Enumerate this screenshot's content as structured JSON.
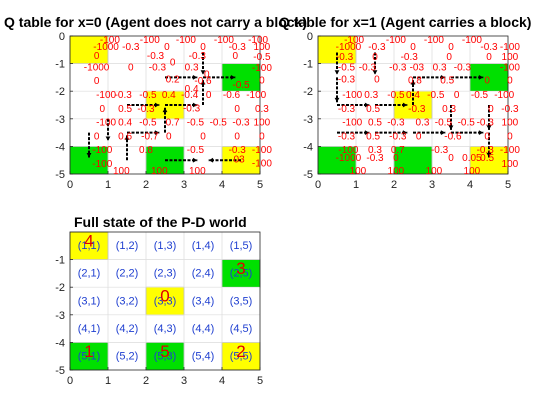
{
  "colors": {
    "pickup": "#ffff00",
    "dropoff": "#00e000",
    "qvalue": "#ff0000",
    "coord_label": "#1f3fd0",
    "grid": "#dcdcdc",
    "axis": "#262626",
    "arrow": "#000000"
  },
  "chart_data": [
    {
      "type": "heatmap",
      "title": "Q table for x=0 (Agent does not carry a block)",
      "xlim": [
        0,
        5
      ],
      "ylim": [
        -5,
        0
      ],
      "xticks": [
        "0",
        "1",
        "2",
        "3",
        "4",
        "5"
      ],
      "yticks": [
        "0",
        "-1",
        "-2",
        "-3",
        "-4",
        "-5"
      ],
      "grid": true,
      "cells": [
        {
          "row": 1,
          "col": 1,
          "color": "pickup"
        },
        {
          "row": 3,
          "col": 3,
          "color": "pickup"
        },
        {
          "row": 5,
          "col": 5,
          "color": "pickup"
        },
        {
          "row": 2,
          "col": 5,
          "color": "dropoff"
        },
        {
          "row": 5,
          "col": 1,
          "color": "dropoff"
        },
        {
          "row": 5,
          "col": 3,
          "color": "dropoff"
        }
      ],
      "q_labels": [
        {
          "x": 1.05,
          "y": -0.12,
          "text": "-100"
        },
        {
          "x": 0.95,
          "y": -0.38,
          "text": "-1000"
        },
        {
          "x": 1.6,
          "y": -0.38,
          "text": "-0.3"
        },
        {
          "x": 2.1,
          "y": -0.12,
          "text": "-100"
        },
        {
          "x": 2.55,
          "y": -0.38,
          "text": "0"
        },
        {
          "x": 3.05,
          "y": -0.12,
          "text": "-100"
        },
        {
          "x": 3.5,
          "y": -0.38,
          "text": "0"
        },
        {
          "x": 4.05,
          "y": -0.12,
          "text": "-100"
        },
        {
          "x": 4.4,
          "y": -0.38,
          "text": "-0.3"
        },
        {
          "x": 4.95,
          "y": -0.12,
          "text": "-100"
        },
        {
          "x": 5.05,
          "y": -0.38,
          "text": "100"
        },
        {
          "x": 0.7,
          "y": -0.7,
          "text": "0"
        },
        {
          "x": 2.25,
          "y": -0.7,
          "text": "-0.3"
        },
        {
          "x": 2.7,
          "y": -0.95,
          "text": "0"
        },
        {
          "x": 3.35,
          "y": -0.7,
          "text": "-0.3"
        },
        {
          "x": 4.35,
          "y": -0.7,
          "text": "0"
        },
        {
          "x": 5.05,
          "y": -0.75,
          "text": "-0.5"
        },
        {
          "x": 0.7,
          "y": -1.12,
          "text": "-1000"
        },
        {
          "x": 1.6,
          "y": -1.12,
          "text": "0"
        },
        {
          "x": 2.3,
          "y": -1.12,
          "text": "-0.3"
        },
        {
          "x": 3.2,
          "y": -1.12,
          "text": "0.3"
        },
        {
          "x": 3.6,
          "y": -1.38,
          "text": "0"
        },
        {
          "x": 5.05,
          "y": -1.15,
          "text": "-100"
        },
        {
          "x": 0.7,
          "y": -1.62,
          "text": "0"
        },
        {
          "x": 2.7,
          "y": -1.55,
          "text": "0.2"
        },
        {
          "x": 3.2,
          "y": -1.9,
          "text": "0.4"
        },
        {
          "x": 3.5,
          "y": -1.62,
          "text": "-0.6"
        },
        {
          "x": 4.5,
          "y": -1.75,
          "text": "-0.5"
        },
        {
          "x": 5.05,
          "y": -1.6,
          "text": "0"
        },
        {
          "x": 0.95,
          "y": -2.12,
          "text": "-100"
        },
        {
          "x": 1.4,
          "y": -2.12,
          "text": "-0.3"
        },
        {
          "x": 2.05,
          "y": -2.12,
          "text": "-0.5"
        },
        {
          "x": 2.6,
          "y": -2.12,
          "text": "0.4"
        },
        {
          "x": 3.15,
          "y": -2.12,
          "text": "-0.4"
        },
        {
          "x": 3.65,
          "y": -2.12,
          "text": "0"
        },
        {
          "x": 4.25,
          "y": -2.12,
          "text": "-0.6"
        },
        {
          "x": 4.9,
          "y": -2.12,
          "text": "-100"
        },
        {
          "x": 0.85,
          "y": -2.62,
          "text": "0"
        },
        {
          "x": 1.45,
          "y": -2.62,
          "text": "0.5"
        },
        {
          "x": 2.0,
          "y": -2.62,
          "text": "-0.3"
        },
        {
          "x": 3.2,
          "y": -2.6,
          "text": "-0.3"
        },
        {
          "x": 4.4,
          "y": -2.62,
          "text": "0"
        },
        {
          "x": 5.05,
          "y": -2.62,
          "text": "0.3"
        },
        {
          "x": 0.95,
          "y": -3.12,
          "text": "-100"
        },
        {
          "x": 1.45,
          "y": -3.12,
          "text": "0.4"
        },
        {
          "x": 2.05,
          "y": -3.12,
          "text": "-0.5"
        },
        {
          "x": 2.7,
          "y": -3.12,
          "text": "0.7"
        },
        {
          "x": 3.3,
          "y": -3.12,
          "text": "-0.5"
        },
        {
          "x": 3.9,
          "y": -3.12,
          "text": "-0.5"
        },
        {
          "x": 4.5,
          "y": -3.12,
          "text": "-0.3"
        },
        {
          "x": 5.05,
          "y": -3.12,
          "text": "100"
        },
        {
          "x": 0.7,
          "y": -3.62,
          "text": "0"
        },
        {
          "x": 1.45,
          "y": -3.62,
          "text": "0.6"
        },
        {
          "x": 2.1,
          "y": -3.62,
          "text": "-0.7"
        },
        {
          "x": 2.6,
          "y": -3.62,
          "text": "0"
        },
        {
          "x": 3.5,
          "y": -3.62,
          "text": "0"
        },
        {
          "x": 4.4,
          "y": -3.62,
          "text": "0"
        },
        {
          "x": 5.05,
          "y": -3.62,
          "text": "0"
        },
        {
          "x": 0.85,
          "y": -4.12,
          "text": "-100"
        },
        {
          "x": 2.0,
          "y": -4.12,
          "text": "0.8"
        },
        {
          "x": 3.3,
          "y": -4.12,
          "text": "-0.5"
        },
        {
          "x": 4.4,
          "y": -4.12,
          "text": "-0.3"
        },
        {
          "x": 5.05,
          "y": -4.12,
          "text": "-100"
        },
        {
          "x": 0.85,
          "y": -4.62,
          "text": "-100"
        },
        {
          "x": 1.35,
          "y": -4.88,
          "text": "100"
        },
        {
          "x": 2.35,
          "y": -4.88,
          "text": "100"
        },
        {
          "x": 3.35,
          "y": -4.88,
          "text": "100"
        },
        {
          "x": 4.45,
          "y": -4.45,
          "text": "03"
        },
        {
          "x": 5.05,
          "y": -4.6,
          "text": "-100"
        }
      ],
      "arrows": [
        {
          "x1": 1.5,
          "y1": -4.5,
          "x2": 1.5,
          "y2": -3.6
        },
        {
          "x1": 1.5,
          "y1": -3.5,
          "x2": 2.35,
          "y2": -3.5
        },
        {
          "x1": 2.5,
          "y1": -3.5,
          "x2": 2.5,
          "y2": -2.6
        },
        {
          "x1": 2.5,
          "y1": -2.5,
          "x2": 3.35,
          "y2": -2.5
        },
        {
          "x1": 3.5,
          "y1": -2.5,
          "x2": 3.5,
          "y2": -1.6
        },
        {
          "x1": 3.5,
          "y1": -1.5,
          "x2": 4.35,
          "y2": -1.5
        },
        {
          "x1": 3.5,
          "y1": -0.6,
          "x2": 3.5,
          "y2": -1.4
        },
        {
          "x1": 0.5,
          "y1": -3.5,
          "x2": 0.5,
          "y2": -4.4
        },
        {
          "x1": 2.5,
          "y1": -4.5,
          "x2": 3.35,
          "y2": -4.5
        },
        {
          "x1": 4.5,
          "y1": -4.5,
          "x2": 3.65,
          "y2": -4.5
        },
        {
          "x1": 1.5,
          "y1": -2.5,
          "x2": 2.35,
          "y2": -2.5
        },
        {
          "x1": 2.5,
          "y1": -1.5,
          "x2": 3.35,
          "y2": -1.5
        },
        {
          "x1": 1.0,
          "y1": -3.0,
          "x2": 1.0,
          "y2": -3.8
        }
      ]
    },
    {
      "type": "heatmap",
      "title": "Q table for x=1 (Agent carries a block)",
      "xlim": [
        0,
        5
      ],
      "ylim": [
        -5,
        0
      ],
      "xticks": [
        "0",
        "1",
        "2",
        "3",
        "4",
        "5"
      ],
      "yticks": [
        "0",
        "-1",
        "-2",
        "-3",
        "-4",
        "-5"
      ],
      "grid": true,
      "cells": [
        {
          "row": 1,
          "col": 1,
          "color": "pickup"
        },
        {
          "row": 3,
          "col": 3,
          "color": "pickup"
        },
        {
          "row": 5,
          "col": 5,
          "color": "pickup"
        },
        {
          "row": 2,
          "col": 5,
          "color": "dropoff"
        },
        {
          "row": 5,
          "col": 1,
          "color": "dropoff"
        },
        {
          "row": 5,
          "col": 3,
          "color": "dropoff"
        }
      ],
      "q_labels": [
        {
          "x": 0.95,
          "y": -0.12,
          "text": "-100"
        },
        {
          "x": 0.8,
          "y": -0.38,
          "text": "-1000"
        },
        {
          "x": 1.55,
          "y": -0.38,
          "text": "-0.3"
        },
        {
          "x": 2.05,
          "y": -0.12,
          "text": "-100"
        },
        {
          "x": 2.5,
          "y": -0.38,
          "text": "0"
        },
        {
          "x": 3.05,
          "y": -0.12,
          "text": "-100"
        },
        {
          "x": 3.5,
          "y": -0.38,
          "text": "0"
        },
        {
          "x": 4.05,
          "y": -0.12,
          "text": "-100"
        },
        {
          "x": 4.5,
          "y": -0.38,
          "text": "-0.3"
        },
        {
          "x": 5.05,
          "y": -0.38,
          "text": "-100"
        },
        {
          "x": 0.7,
          "y": -0.75,
          "text": "-0.3"
        },
        {
          "x": 1.5,
          "y": -0.75,
          "text": "0"
        },
        {
          "x": 2.4,
          "y": -0.75,
          "text": "-0.3"
        },
        {
          "x": 3.45,
          "y": -0.75,
          "text": "0"
        },
        {
          "x": 4.5,
          "y": -0.75,
          "text": "0"
        },
        {
          "x": 5.05,
          "y": -0.75,
          "text": "100"
        },
        {
          "x": 0.75,
          "y": -1.12,
          "text": "-0.5"
        },
        {
          "x": 1.3,
          "y": -1.12,
          "text": "-0.3"
        },
        {
          "x": 2.1,
          "y": -1.12,
          "text": "-0.3"
        },
        {
          "x": 2.6,
          "y": -1.12,
          "text": "-03"
        },
        {
          "x": 3.2,
          "y": -1.12,
          "text": "0.3"
        },
        {
          "x": 3.8,
          "y": -1.12,
          "text": "-0.3"
        },
        {
          "x": 5.05,
          "y": -1.12,
          "text": "-100"
        },
        {
          "x": 0.75,
          "y": -1.55,
          "text": "-0.3"
        },
        {
          "x": 1.55,
          "y": -1.55,
          "text": "0"
        },
        {
          "x": 2.55,
          "y": -1.6,
          "text": "0.8"
        },
        {
          "x": 3.4,
          "y": -1.6,
          "text": "0.5"
        },
        {
          "x": 4.45,
          "y": -1.6,
          "text": "0"
        },
        {
          "x": 5.05,
          "y": -1.6,
          "text": "0"
        },
        {
          "x": 0.9,
          "y": -2.12,
          "text": "-100"
        },
        {
          "x": 1.4,
          "y": -2.12,
          "text": "0.3"
        },
        {
          "x": 2.05,
          "y": -2.12,
          "text": "-0.5"
        },
        {
          "x": 2.5,
          "y": -2.12,
          "text": "0.4"
        },
        {
          "x": 3.1,
          "y": -2.12,
          "text": "-0.5"
        },
        {
          "x": 3.65,
          "y": -2.12,
          "text": "0"
        },
        {
          "x": 4.25,
          "y": -2.12,
          "text": "-0.5"
        },
        {
          "x": 4.9,
          "y": -2.12,
          "text": "-100"
        },
        {
          "x": 0.75,
          "y": -2.62,
          "text": "-0.3"
        },
        {
          "x": 1.45,
          "y": -2.62,
          "text": "0.5"
        },
        {
          "x": 2.6,
          "y": -2.62,
          "text": "-0.3"
        },
        {
          "x": 3.45,
          "y": -2.62,
          "text": "0.3"
        },
        {
          "x": 4.55,
          "y": -2.62,
          "text": "0"
        },
        {
          "x": 5.05,
          "y": -2.62,
          "text": "-0.3"
        },
        {
          "x": 0.9,
          "y": -3.12,
          "text": "-100"
        },
        {
          "x": 1.5,
          "y": -3.12,
          "text": "0.5"
        },
        {
          "x": 2.05,
          "y": -3.12,
          "text": "-0.3"
        },
        {
          "x": 2.75,
          "y": -3.12,
          "text": "0.3"
        },
        {
          "x": 3.3,
          "y": -3.12,
          "text": "-0.5"
        },
        {
          "x": 3.9,
          "y": -3.12,
          "text": "-0.5"
        },
        {
          "x": 4.4,
          "y": -3.12,
          "text": "-0.3"
        },
        {
          "x": 5.05,
          "y": -3.12,
          "text": "100"
        },
        {
          "x": 0.75,
          "y": -3.62,
          "text": "-0.3"
        },
        {
          "x": 1.45,
          "y": -3.62,
          "text": "0.5"
        },
        {
          "x": 2.1,
          "y": -3.62,
          "text": "-0.3"
        },
        {
          "x": 2.65,
          "y": -3.62,
          "text": "0"
        },
        {
          "x": 3.55,
          "y": -3.62,
          "text": "-0.6"
        },
        {
          "x": 4.45,
          "y": -3.62,
          "text": "0"
        },
        {
          "x": 5.05,
          "y": -3.62,
          "text": "0"
        },
        {
          "x": 0.8,
          "y": -4.12,
          "text": "-100"
        },
        {
          "x": 1.5,
          "y": -4.12,
          "text": "0.3"
        },
        {
          "x": 2.1,
          "y": -4.12,
          "text": "0.7"
        },
        {
          "x": 3.2,
          "y": -4.12,
          "text": "-0.3"
        },
        {
          "x": 4.4,
          "y": -4.12,
          "text": "-0.3"
        },
        {
          "x": 5.05,
          "y": -4.12,
          "text": "-100"
        },
        {
          "x": 0.8,
          "y": -4.4,
          "text": "-1000"
        },
        {
          "x": 1.5,
          "y": -4.4,
          "text": "-0.3"
        },
        {
          "x": 2.05,
          "y": -4.4,
          "text": "0"
        },
        {
          "x": 3.5,
          "y": -4.4,
          "text": "0"
        },
        {
          "x": 4.05,
          "y": -4.4,
          "text": "0.05"
        },
        {
          "x": 4.45,
          "y": -4.4,
          "text": "0.5"
        },
        {
          "x": 5.05,
          "y": -4.62,
          "text": "100"
        },
        {
          "x": 1.05,
          "y": -4.88,
          "text": "100"
        },
        {
          "x": 2.05,
          "y": -4.88,
          "text": "100"
        },
        {
          "x": 3.05,
          "y": -4.88,
          "text": "100"
        },
        {
          "x": 4.05,
          "y": -4.88,
          "text": "100"
        }
      ],
      "arrows": [
        {
          "x1": 0.5,
          "y1": -0.6,
          "x2": 0.5,
          "y2": -1.4
        },
        {
          "x1": 0.5,
          "y1": -1.5,
          "x2": 0.5,
          "y2": -2.4
        },
        {
          "x1": 0.5,
          "y1": -2.5,
          "x2": 1.35,
          "y2": -2.5
        },
        {
          "x1": 1.5,
          "y1": -2.5,
          "x2": 2.35,
          "y2": -2.5
        },
        {
          "x1": 2.5,
          "y1": -2.5,
          "x2": 2.5,
          "y2": -1.6
        },
        {
          "x1": 2.5,
          "y1": -1.5,
          "x2": 3.35,
          "y2": -1.5
        },
        {
          "x1": 3.5,
          "y1": -1.5,
          "x2": 4.35,
          "y2": -1.5
        },
        {
          "x1": 0.5,
          "y1": -3.5,
          "x2": 1.35,
          "y2": -3.5
        },
        {
          "x1": 1.5,
          "y1": -3.5,
          "x2": 2.35,
          "y2": -3.5
        },
        {
          "x1": 2.5,
          "y1": -3.5,
          "x2": 3.35,
          "y2": -3.5
        },
        {
          "x1": 3.5,
          "y1": -3.5,
          "x2": 4.35,
          "y2": -3.5
        },
        {
          "x1": 4.5,
          "y1": -3.5,
          "x2": 4.5,
          "y2": -4.4
        },
        {
          "x1": 1.5,
          "y1": -0.6,
          "x2": 1.5,
          "y2": -1.4
        },
        {
          "x1": 3.5,
          "y1": -2.5,
          "x2": 3.5,
          "y2": -3.4
        },
        {
          "x1": 4.5,
          "y1": -2.5,
          "x2": 4.5,
          "y2": -3.4
        }
      ]
    },
    {
      "type": "heatmap",
      "title": "Full state of the P-D world",
      "xlim": [
        0,
        5
      ],
      "ylim": [
        -5,
        0
      ],
      "xticks": [
        "0",
        "1",
        "2",
        "3",
        "4",
        "5"
      ],
      "yticks": [
        "-1",
        "-2",
        "-3",
        "-4",
        "-5"
      ],
      "grid": true,
      "cells": [
        {
          "row": 1,
          "col": 1,
          "color": "pickup",
          "count": "4"
        },
        {
          "row": 3,
          "col": 3,
          "color": "pickup",
          "count": "0"
        },
        {
          "row": 5,
          "col": 5,
          "color": "pickup",
          "count": "2"
        },
        {
          "row": 2,
          "col": 5,
          "color": "dropoff",
          "count": "3"
        },
        {
          "row": 5,
          "col": 1,
          "color": "dropoff",
          "count": "1"
        },
        {
          "row": 5,
          "col": 3,
          "color": "dropoff",
          "count": "5"
        }
      ],
      "cell_labels": [
        [
          "(1,1)",
          "(1,2)",
          "(1,3)",
          "(1,4)",
          "(1,5)"
        ],
        [
          "(2,1)",
          "(2,2)",
          "(2,3)",
          "(2,4)",
          "(2,5)"
        ],
        [
          "(3,1)",
          "(3,2)",
          "(3,3)",
          "(3,4)",
          "(3,5)"
        ],
        [
          "(4,1)",
          "(4,2)",
          "(4,3)",
          "(4,4)",
          "(4,5)"
        ],
        [
          "(5,1)",
          "(5,2)",
          "(5,3)",
          "(5,4)",
          "(5,5)"
        ]
      ]
    }
  ]
}
